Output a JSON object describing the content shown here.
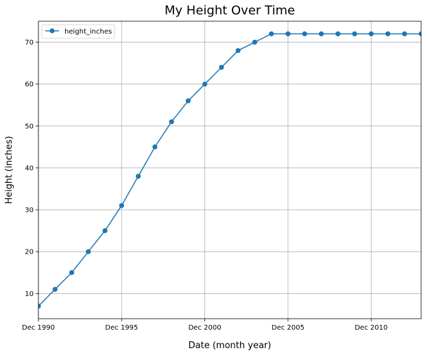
{
  "chart_data": {
    "type": "line",
    "title": "My Height Over Time",
    "xlabel": "Date (month year)",
    "ylabel": "Height (inches)",
    "x": [
      "Dec 1990",
      "Dec 1991",
      "Dec 1992",
      "Dec 1993",
      "Dec 1994",
      "Dec 1995",
      "Dec 1996",
      "Dec 1997",
      "Dec 1998",
      "Dec 1999",
      "Dec 2000",
      "Dec 2001",
      "Dec 2002",
      "Dec 2003",
      "Dec 2004",
      "Dec 2005",
      "Dec 2006",
      "Dec 2007",
      "Dec 2008",
      "Dec 2009",
      "Dec 2010",
      "Dec 2011",
      "Dec 2012",
      "Dec 2013"
    ],
    "series": [
      {
        "name": "height_inches",
        "values": [
          7,
          11,
          15,
          20,
          25,
          31,
          38,
          45,
          51,
          56,
          60,
          64,
          68,
          70,
          72,
          72,
          72,
          72,
          72,
          72,
          72,
          72,
          72,
          72
        ]
      }
    ],
    "xlim": [
      "Dec 1990",
      "Dec 2013"
    ],
    "ylim": [
      4,
      75
    ],
    "xticks": [
      "Dec 1990",
      "Dec 1995",
      "Dec 2000",
      "Dec 2005",
      "Dec 2010"
    ],
    "yticks": [
      10,
      20,
      30,
      40,
      50,
      60,
      70
    ],
    "grid": true,
    "legend_position": "top-left",
    "line_color": "#1f77b4"
  }
}
